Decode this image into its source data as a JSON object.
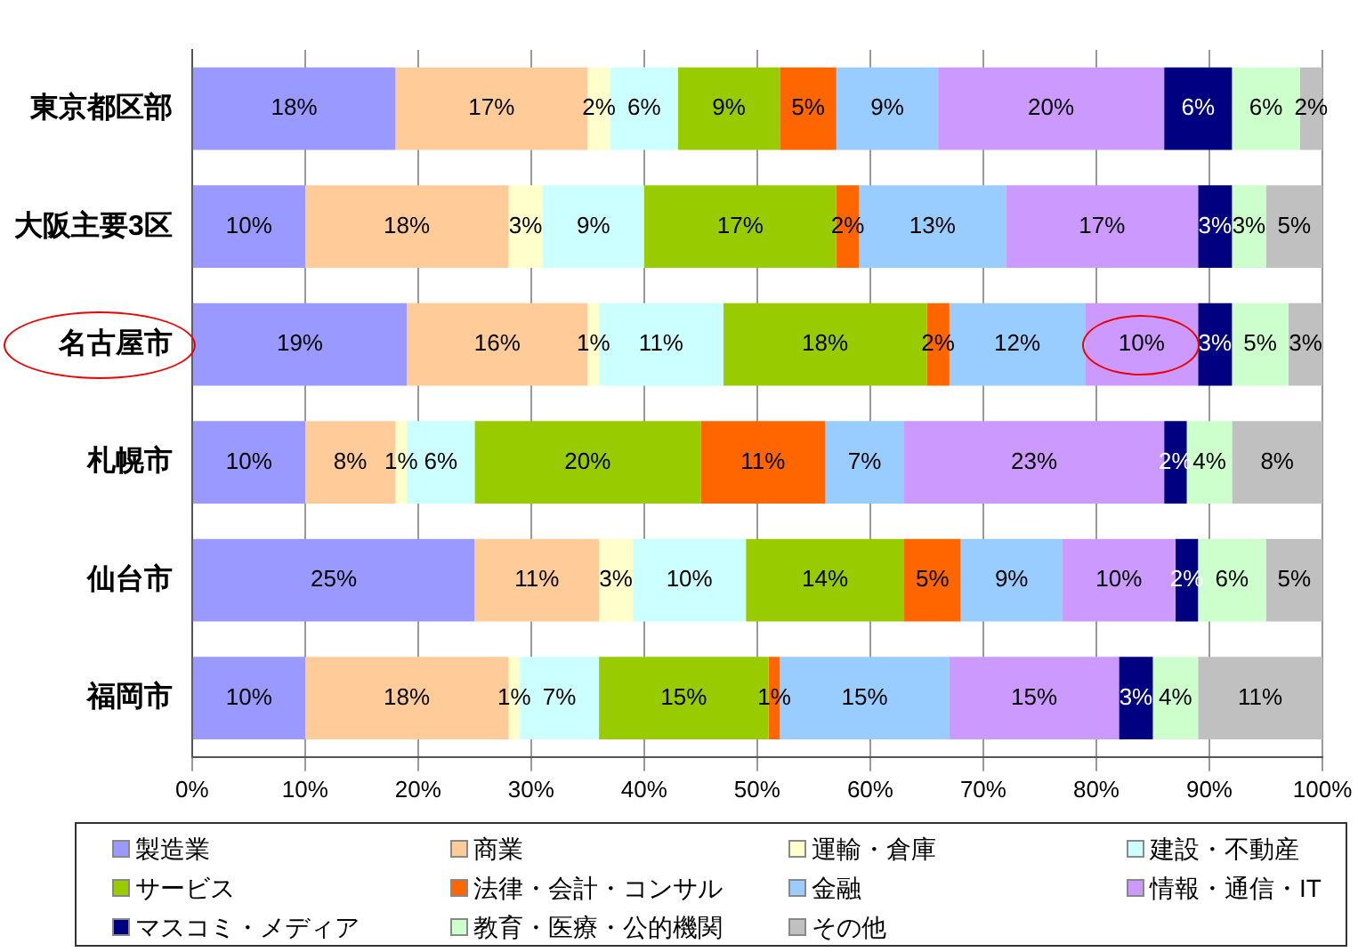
{
  "chart_data": {
    "type": "bar",
    "orientation": "horizontal",
    "stacked": true,
    "grid": "x",
    "legend": "bottom",
    "categories": [
      "東京都区部",
      "大阪主要3区",
      "名古屋市",
      "札幌市",
      "仙台市",
      "福岡市"
    ],
    "xlim": [
      0,
      100
    ],
    "xticks": [
      {
        "value": 0,
        "label": "0%"
      },
      {
        "value": 10,
        "label": "10%"
      },
      {
        "value": 20,
        "label": "20%"
      },
      {
        "value": 30,
        "label": "30%"
      },
      {
        "value": 40,
        "label": "40%"
      },
      {
        "value": 50,
        "label": "50%"
      },
      {
        "value": 60,
        "label": "60%"
      },
      {
        "value": 70,
        "label": "70%"
      },
      {
        "value": 80,
        "label": "80%"
      },
      {
        "value": 90,
        "label": "90%"
      },
      {
        "value": 100,
        "label": "100%"
      }
    ],
    "series": [
      {
        "name": "製造業",
        "color": "#9999ff",
        "values": [
          18,
          10,
          19,
          10,
          25,
          10
        ],
        "value_labels": [
          "18%",
          "10%",
          "19%",
          "10%",
          "25%",
          "10%"
        ]
      },
      {
        "name": "商業",
        "color": "#ffcc99",
        "values": [
          17,
          18,
          16,
          8,
          11,
          18
        ],
        "value_labels": [
          "17%",
          "18%",
          "16%",
          "8%",
          "11%",
          "18%"
        ]
      },
      {
        "name": "運輸・倉庫",
        "color": "#ffffcc",
        "values": [
          2,
          3,
          1,
          1,
          3,
          1
        ],
        "value_labels": [
          "2%",
          "3%",
          "1%",
          "1%",
          "3%",
          "1%"
        ]
      },
      {
        "name": "建設・不動産",
        "color": "#ccffff",
        "values": [
          6,
          9,
          11,
          6,
          10,
          7
        ],
        "value_labels": [
          "6%",
          "9%",
          "11%",
          "6%",
          "10%",
          "7%"
        ]
      },
      {
        "name": "サービス",
        "color": "#99cc00",
        "values": [
          9,
          17,
          18,
          20,
          14,
          15
        ],
        "value_labels": [
          "9%",
          "17%",
          "18%",
          "20%",
          "14%",
          "15%"
        ]
      },
      {
        "name": "法律・会計・コンサル",
        "color": "#ff6600",
        "values": [
          5,
          2,
          2,
          11,
          5,
          1
        ],
        "value_labels": [
          "5%",
          "2%",
          "2%",
          "11%",
          "5%",
          "1%"
        ]
      },
      {
        "name": "金融",
        "color": "#99ccff",
        "values": [
          9,
          13,
          12,
          7,
          9,
          15
        ],
        "value_labels": [
          "9%",
          "13%",
          "12%",
          "7%",
          "9%",
          "15%"
        ]
      },
      {
        "name": "情報・通信・IT",
        "color": "#cc99ff",
        "values": [
          20,
          17,
          10,
          23,
          10,
          15
        ],
        "value_labels": [
          "20%",
          "17%",
          "10%",
          "23%",
          "10%",
          "15%"
        ]
      },
      {
        "name": "マスコミ・メディア",
        "color": "#000080",
        "values": [
          6,
          3,
          3,
          2,
          2,
          3
        ],
        "value_labels": [
          "6%",
          "3%",
          "3%",
          "2%",
          "2%",
          "3%"
        ]
      },
      {
        "name": "教育・医療・公的機関",
        "color": "#ccffcc",
        "values": [
          6,
          3,
          5,
          4,
          6,
          4
        ],
        "value_labels": [
          "6%",
          "3%",
          "5%",
          "4%",
          "6%",
          "4%"
        ]
      },
      {
        "name": "その他",
        "color": "#c0c0c0",
        "values": [
          2,
          5,
          3,
          8,
          5,
          11
        ],
        "value_labels": [
          "2%",
          "5%",
          "3%",
          "8%",
          "5%",
          "11%"
        ]
      }
    ]
  }
}
